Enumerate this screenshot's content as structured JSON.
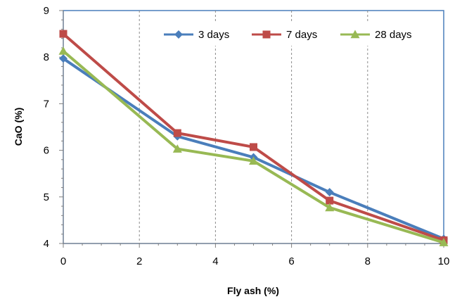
{
  "chart_data": {
    "type": "line",
    "title": "",
    "xlabel": "Fly ash (%)",
    "ylabel": "CaO (%)",
    "xlim": [
      0,
      10
    ],
    "ylim": [
      4,
      9
    ],
    "xticks": [
      "0",
      "2",
      "4",
      "6",
      "8",
      "10"
    ],
    "yticks": [
      "4",
      "5",
      "6",
      "7",
      "8",
      "9"
    ],
    "grid": "vertical dashed",
    "legend_position": "top-right",
    "x": [
      0,
      3,
      5,
      7,
      10
    ],
    "series": [
      {
        "name": "3 days",
        "color": "#4A7EBB",
        "marker": "diamond",
        "values": [
          7.97,
          6.3,
          5.85,
          5.1,
          4.1
        ]
      },
      {
        "name": "7 days",
        "color": "#BE4B48",
        "marker": "square",
        "values": [
          8.5,
          6.37,
          6.07,
          4.92,
          4.07
        ]
      },
      {
        "name": "28 days",
        "color": "#98B954",
        "marker": "triangle",
        "values": [
          8.13,
          6.03,
          5.77,
          4.77,
          4.02
        ]
      }
    ]
  }
}
